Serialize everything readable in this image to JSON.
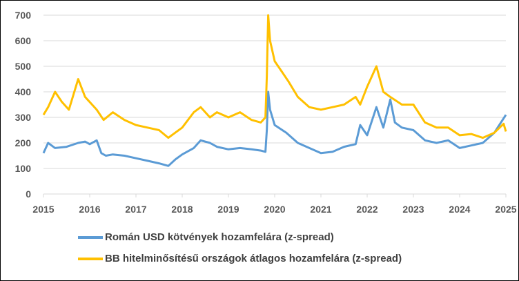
{
  "chart_data": {
    "type": "line",
    "title": "",
    "xlabel": "",
    "ylabel": "",
    "xlim": [
      2015,
      2025
    ],
    "ylim": [
      0,
      700
    ],
    "y_ticks": [
      "0",
      "100",
      "200",
      "300",
      "400",
      "500",
      "600",
      "700"
    ],
    "x_ticks": [
      "2015",
      "2016",
      "2017",
      "2018",
      "2019",
      "2020",
      "2021",
      "2022",
      "2023",
      "2024",
      "2025"
    ],
    "grid": "horizontal",
    "legend_position": "bottom",
    "series": [
      {
        "name": "Román USD kötvények hozamfelára (z-spread)",
        "color": "#5B9BD5",
        "x": [
          2015.0,
          2015.1,
          2015.25,
          2015.5,
          2015.75,
          2015.9,
          2016.0,
          2016.15,
          2016.25,
          2016.35,
          2016.5,
          2016.75,
          2017.0,
          2017.25,
          2017.5,
          2017.7,
          2017.85,
          2018.0,
          2018.25,
          2018.4,
          2018.6,
          2018.75,
          2019.0,
          2019.25,
          2019.5,
          2019.7,
          2019.8,
          2019.83,
          2019.86,
          2019.9,
          2020.0,
          2020.25,
          2020.5,
          2020.75,
          2021.0,
          2021.25,
          2021.5,
          2021.75,
          2021.85,
          2022.0,
          2022.2,
          2022.35,
          2022.5,
          2022.6,
          2022.75,
          2023.0,
          2023.25,
          2023.5,
          2023.75,
          2024.0,
          2024.25,
          2024.5,
          2024.75,
          2025.0
        ],
        "y": [
          160,
          200,
          180,
          185,
          200,
          205,
          195,
          210,
          160,
          150,
          155,
          150,
          140,
          130,
          120,
          110,
          135,
          155,
          180,
          210,
          200,
          185,
          175,
          180,
          175,
          170,
          165,
          250,
          400,
          330,
          270,
          240,
          200,
          180,
          160,
          165,
          185,
          195,
          270,
          230,
          340,
          260,
          370,
          280,
          260,
          250,
          210,
          200,
          210,
          180,
          190,
          200,
          240,
          310
        ]
      },
      {
        "name": "BB hitelminősítésű országok átlagos hozamfelára (z-spread)",
        "color": "#FFC000",
        "x": [
          2015.0,
          2015.1,
          2015.25,
          2015.4,
          2015.55,
          2015.75,
          2015.9,
          2016.0,
          2016.15,
          2016.3,
          2016.5,
          2016.75,
          2017.0,
          2017.25,
          2017.5,
          2017.7,
          2017.85,
          2018.0,
          2018.25,
          2018.4,
          2018.6,
          2018.75,
          2019.0,
          2019.25,
          2019.5,
          2019.7,
          2019.8,
          2019.83,
          2019.86,
          2019.9,
          2020.0,
          2020.15,
          2020.3,
          2020.5,
          2020.75,
          2021.0,
          2021.25,
          2021.5,
          2021.75,
          2021.85,
          2022.0,
          2022.2,
          2022.35,
          2022.5,
          2022.75,
          2023.0,
          2023.25,
          2023.5,
          2023.75,
          2024.0,
          2024.25,
          2024.5,
          2024.75,
          2024.95,
          2025.0
        ],
        "y": [
          310,
          340,
          400,
          360,
          330,
          450,
          380,
          360,
          330,
          290,
          320,
          290,
          270,
          260,
          250,
          220,
          240,
          260,
          320,
          340,
          300,
          320,
          300,
          320,
          290,
          280,
          300,
          460,
          700,
          600,
          520,
          480,
          440,
          380,
          340,
          330,
          340,
          350,
          380,
          350,
          420,
          500,
          400,
          380,
          350,
          350,
          280,
          260,
          260,
          230,
          235,
          220,
          240,
          275,
          245
        ]
      }
    ]
  }
}
